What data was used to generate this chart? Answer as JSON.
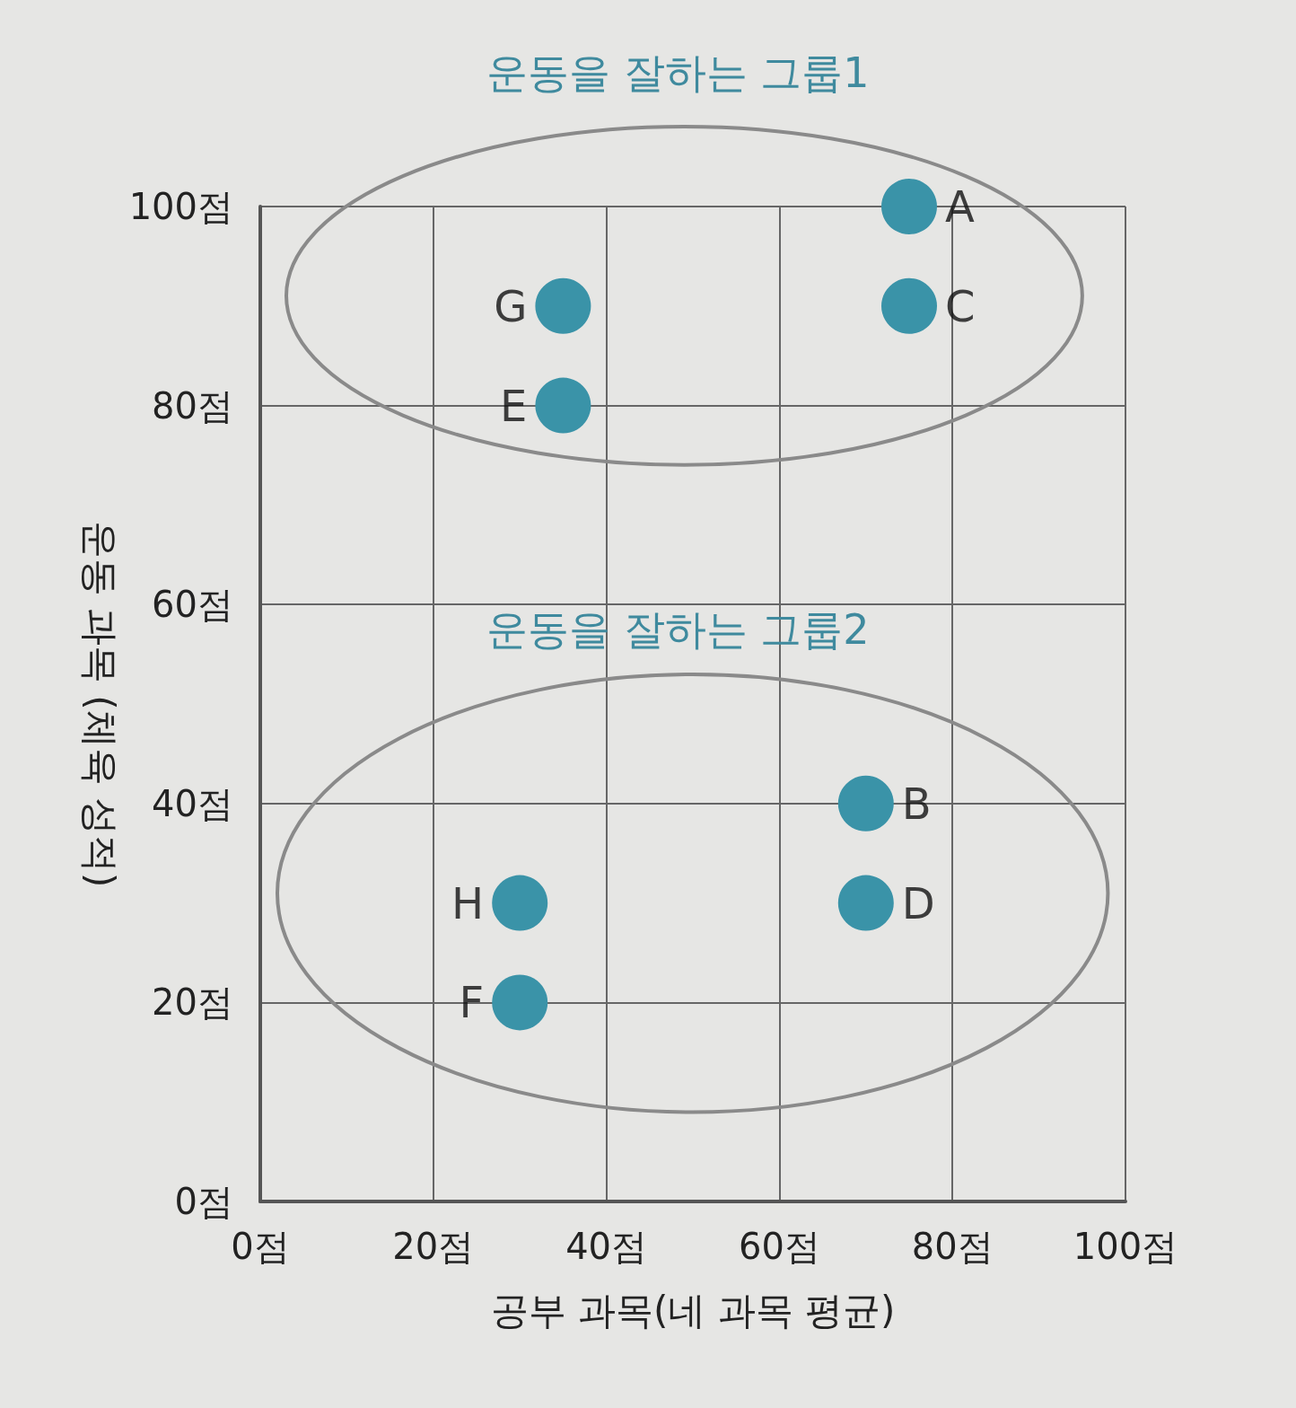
{
  "chart_data": {
    "type": "scatter",
    "xlabel": "공부 과목(네 과목 평균)",
    "ylabel": "운동 과목 (체육 성적)",
    "x": [
      75,
      70,
      75,
      70,
      35,
      30,
      35,
      30
    ],
    "series": [
      {
        "color": "#3a93a8",
        "values": [
          100,
          40,
          90,
          30,
          80,
          20,
          90,
          30
        ]
      }
    ],
    "xlim": [
      0,
      100
    ],
    "ylim": [
      0,
      100
    ],
    "xticks": [
      {
        "value": 0,
        "label": "0점"
      },
      {
        "value": 20,
        "label": "20점"
      },
      {
        "value": 40,
        "label": "40점"
      },
      {
        "value": 60,
        "label": "60점"
      },
      {
        "value": 80,
        "label": "80점"
      },
      {
        "value": 100,
        "label": "100점"
      }
    ],
    "yticks": [
      {
        "value": 0,
        "label": "0점"
      },
      {
        "value": 20,
        "label": "20점"
      },
      {
        "value": 40,
        "label": "40점"
      },
      {
        "value": 60,
        "label": "60점"
      },
      {
        "value": 80,
        "label": "80점"
      },
      {
        "value": 100,
        "label": "100점"
      }
    ],
    "grid": true,
    "marker": "circle",
    "annotations": [
      "운동을 잘하는 그룹1",
      "운동을 잘하는 그룹2",
      {
        "text": "A",
        "x": 75,
        "y": 100
      },
      {
        "text": "B",
        "x": 70,
        "y": 40
      },
      {
        "text": "C",
        "x": 75,
        "y": 90
      },
      {
        "text": "D",
        "x": 70,
        "y": 30
      },
      {
        "text": "E",
        "x": 35,
        "y": 80
      },
      {
        "text": "F",
        "x": 30,
        "y": 20
      },
      {
        "text": "G",
        "x": 35,
        "y": 90
      },
      {
        "text": "H",
        "x": 30,
        "y": 30
      }
    ]
  }
}
